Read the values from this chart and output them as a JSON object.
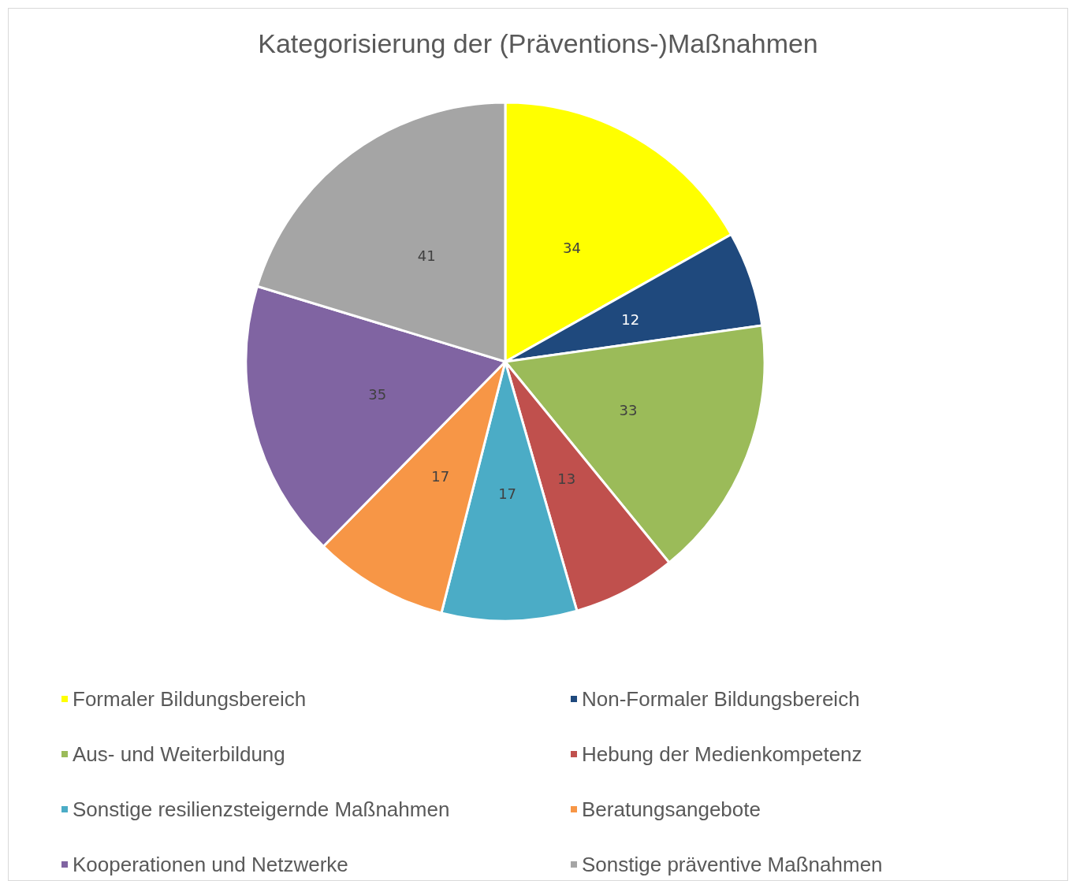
{
  "chart_data": {
    "type": "pie",
    "title": "Kategorisierung der (Präventions-)Maßnahmen",
    "categories": [
      "Formaler Bildungsbereich",
      "Non-Formaler Bildungsbereich",
      "Aus- und Weiterbildung",
      "Hebung der Medienkompetenz",
      "Sonstige resilienzsteigernde Maßnahmen",
      "Beratungsangebote",
      "Kooperationen und Netzwerke",
      "Sonstige präventive Maßnahmen"
    ],
    "values": [
      34,
      12,
      33,
      13,
      17,
      17,
      35,
      41
    ],
    "colors": [
      "#ffff00",
      "#1f497d",
      "#9bbb59",
      "#c0504d",
      "#4bacc6",
      "#f79646",
      "#8064a2",
      "#a5a5a5"
    ],
    "data_labels": true,
    "legend": "bottom"
  }
}
